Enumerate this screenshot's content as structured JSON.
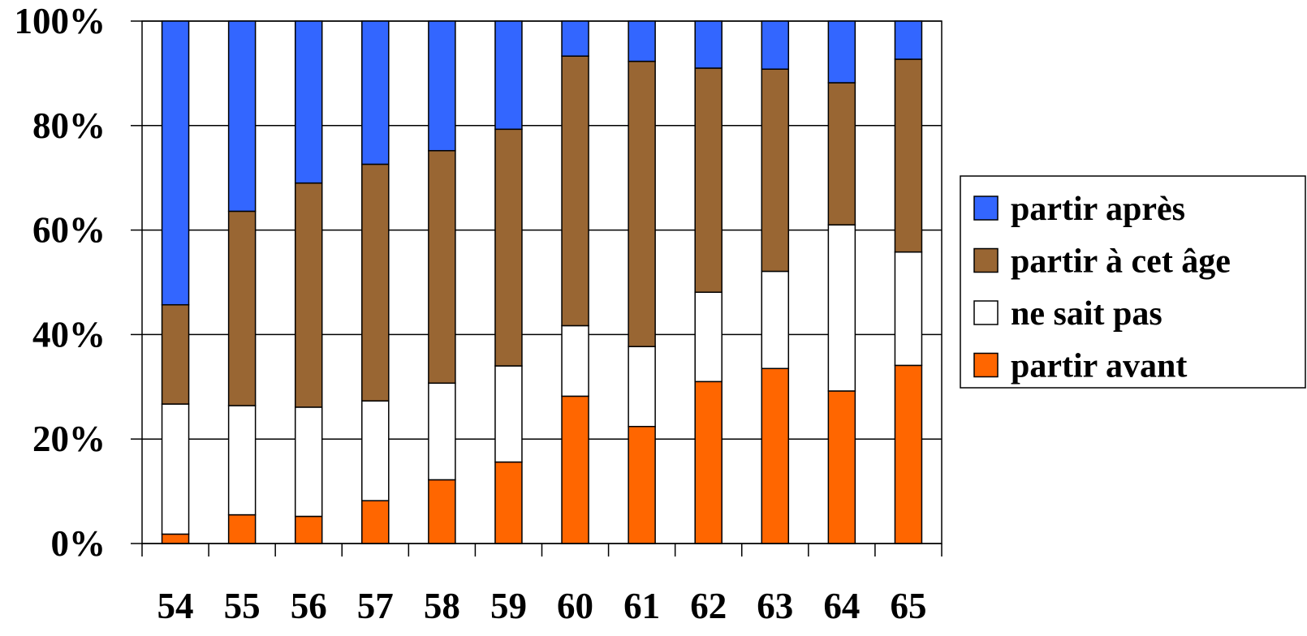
{
  "chart_data": {
    "type": "bar",
    "stacked": true,
    "categories": [
      "54",
      "55",
      "56",
      "57",
      "58",
      "59",
      "60",
      "61",
      "62",
      "63",
      "64",
      "65"
    ],
    "series": [
      {
        "name": "partir avant",
        "color": "#ff6600",
        "values": [
          1.8,
          5.5,
          5.2,
          8.2,
          12.2,
          15.6,
          28.2,
          22.4,
          31.0,
          33.5,
          29.2,
          34.1
        ]
      },
      {
        "name": "ne sait pas",
        "color": "#ffffff",
        "values": [
          24.9,
          20.9,
          20.9,
          19.1,
          18.5,
          18.4,
          13.5,
          15.3,
          17.1,
          18.6,
          31.8,
          21.7
        ]
      },
      {
        "name": "partir à cet âge",
        "color": "#996633",
        "values": [
          19.0,
          37.2,
          42.9,
          45.3,
          44.5,
          45.3,
          51.6,
          54.6,
          42.9,
          38.7,
          27.2,
          36.9
        ]
      },
      {
        "name": "partir après",
        "color": "#3366ff",
        "values": [
          54.3,
          36.4,
          31.0,
          27.4,
          24.8,
          20.7,
          6.7,
          7.7,
          9.0,
          9.2,
          11.8,
          7.3
        ]
      }
    ],
    "legend_order": [
      "partir après",
      "partir à cet âge",
      "ne sait pas",
      "partir avant"
    ],
    "y_ticks": [
      "0%",
      "20%",
      "40%",
      "60%",
      "80%",
      "100%"
    ],
    "ylim": [
      0,
      100
    ],
    "grid": true,
    "legend_position": "right"
  }
}
